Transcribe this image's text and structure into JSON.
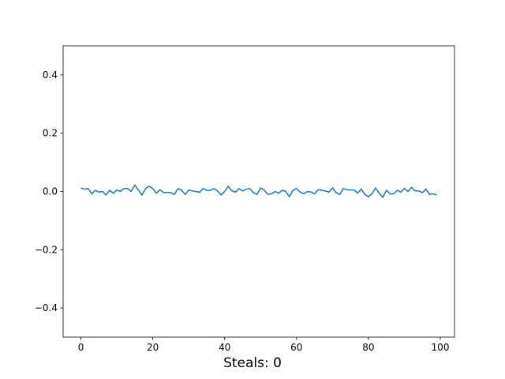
{
  "chart_data": {
    "type": "line",
    "annotation": "Steals: 0",
    "x": [
      0,
      1,
      2,
      3,
      4,
      5,
      6,
      7,
      8,
      9,
      10,
      11,
      12,
      13,
      14,
      15,
      16,
      17,
      18,
      19,
      20,
      21,
      22,
      23,
      24,
      25,
      26,
      27,
      28,
      29,
      30,
      31,
      32,
      33,
      34,
      35,
      36,
      37,
      38,
      39,
      40,
      41,
      42,
      43,
      44,
      45,
      46,
      47,
      48,
      49,
      50,
      51,
      52,
      53,
      54,
      55,
      56,
      57,
      58,
      59,
      60,
      61,
      62,
      63,
      64,
      65,
      66,
      67,
      68,
      69,
      70,
      71,
      72,
      73,
      74,
      75,
      76,
      77,
      78,
      79,
      80,
      81,
      82,
      83,
      84,
      85,
      86,
      87,
      88,
      89,
      90,
      91,
      92,
      93,
      94,
      95,
      96,
      97,
      98,
      99
    ],
    "series": [
      {
        "color": "#1f77b4",
        "values": [
          0.012,
          0.008,
          0.01,
          -0.008,
          0.004,
          -0.002,
          0,
          -0.012,
          0.004,
          -0.006,
          0.005,
          0,
          0.01,
          0.01,
          0,
          0.022,
          0.005,
          -0.012,
          0.01,
          0.018,
          0.01,
          -0.006,
          0.006,
          -0.004,
          -0.003,
          -0.004,
          -0.01,
          0.01,
          0.005,
          -0.01,
          0.005,
          0.002,
          0,
          -0.003,
          0.01,
          0.004,
          0.004,
          0.01,
          0.002,
          -0.012,
          0,
          0.018,
          0.002,
          -0.002,
          0.01,
          0.002,
          0.008,
          0.01,
          -0.004,
          -0.01,
          0.012,
          0.005,
          -0.01,
          -0.008,
          0,
          -0.006,
          0.004,
          0,
          -0.018,
          0.004,
          0.01,
          -0.002,
          -0.008,
          0,
          -0.002,
          -0.008,
          0.006,
          0.004,
          0.002,
          -0.002,
          0.012,
          -0.004,
          -0.01,
          0.01,
          0.006,
          0.005,
          0.005,
          -0.005,
          0.008,
          -0.01,
          -0.018,
          -0.008,
          0.012,
          -0.006,
          -0.02,
          0.004,
          -0.008,
          -0.008,
          0.004,
          -0.002,
          0.01,
          0,
          0.014,
          0.002,
          0.002,
          -0.004,
          0.008,
          -0.01,
          -0.008,
          -0.012
        ]
      }
    ],
    "xlim": [
      -4.95,
      103.95
    ],
    "xticks": [
      0,
      20,
      40,
      60,
      80,
      100
    ],
    "ylim": [
      -0.5,
      0.5
    ],
    "yticks": [
      {
        "value": -0.4,
        "label": "−0.4"
      },
      {
        "value": -0.2,
        "label": "−0.2"
      },
      {
        "value": 0,
        "label": "0.0"
      },
      0.2,
      0.4
    ]
  }
}
